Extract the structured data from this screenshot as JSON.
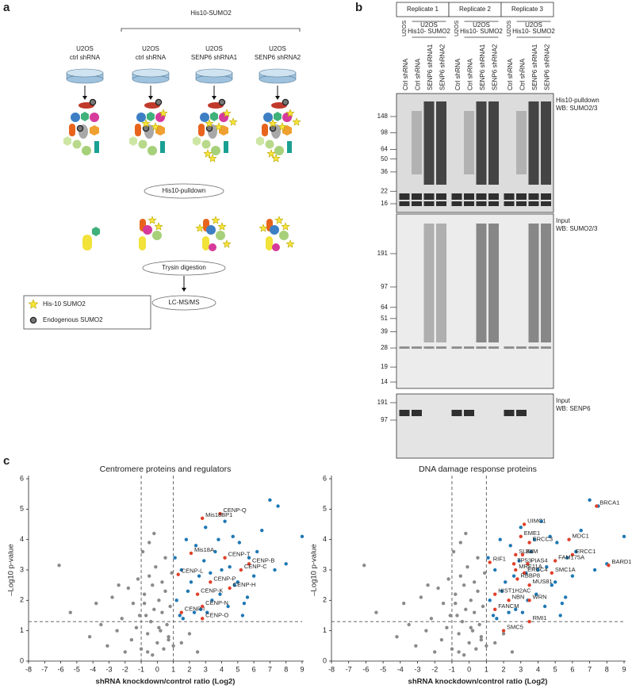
{
  "panel_labels": [
    "a",
    "b",
    "c"
  ],
  "panel_a": {
    "group_label": "His10-SUMO2",
    "columns": [
      [
        "U2OS",
        "ctrl shRNA"
      ],
      [
        "U2OS",
        "ctrl shRNA"
      ],
      [
        "U2OS",
        "SENP6 shRNA1"
      ],
      [
        "U2OS",
        "SENP6 shRNA2"
      ]
    ],
    "steps": [
      "His10-pulldown",
      "Trysin digestion",
      "LC-MS/MS"
    ],
    "legend": [
      "His-10 SUMO2",
      "Endogenous SUMO2"
    ]
  },
  "panel_b": {
    "replicates": [
      "Replicate 1",
      "Replicate 2",
      "Replicate 3"
    ],
    "control_group": "U2OS",
    "his_group": [
      "U2OS",
      "His10- SUMO2"
    ],
    "lanes": [
      [
        "Ctrl shRNA",
        "Ctrl shRNA",
        "SENP6 shRNA1",
        "SENP6 shRNA2"
      ],
      [
        "Ctrl shRNA",
        "Ctrl shRNA",
        "SENP6 shRNA1",
        "SENP6 shRNA2"
      ],
      [
        "Ctrl shRNA",
        "Ctrl shRNA",
        "SENP6 shRNA1",
        "SENP6 shRNA2"
      ]
    ],
    "blots": [
      {
        "caption": [
          "His10-pulldown",
          "WB: SUMO2/3"
        ],
        "markers": [
          148,
          98,
          64,
          50,
          36,
          22,
          16
        ]
      },
      {
        "caption": [
          "Input",
          "WB: SUMO2/3"
        ],
        "markers": [
          191,
          97,
          64,
          51,
          39,
          28,
          19,
          14
        ]
      },
      {
        "caption": [
          "Input",
          "WB: SENP6"
        ],
        "markers": [
          191,
          97
        ]
      }
    ]
  },
  "chart_data": [
    {
      "type": "scatter",
      "title": "Centromere proteins and regulators",
      "x_label": "shRNA knockdown/control ratio (Log2)",
      "y_label": "–Log10 p-value",
      "xlim": [
        -8,
        9
      ],
      "ylim": [
        0,
        6
      ],
      "xticks": [
        -8,
        -7,
        -6,
        -5,
        -4,
        -3,
        -2,
        -1,
        0,
        1,
        2,
        3,
        4,
        5,
        6,
        7,
        8,
        9
      ],
      "yticks": [
        0,
        1,
        2,
        3,
        4,
        5,
        6
      ],
      "thresholds": {
        "x": [
          -1,
          1
        ],
        "y": 1.3
      },
      "series": [
        {
          "color": "#8a8a8a",
          "x": [
            -6.1,
            -5.4,
            -4.2,
            -3.5,
            -3.1,
            -2.8,
            -2.5,
            -2.2,
            -2.0,
            -1.8,
            -1.6,
            -1.5,
            -1.3,
            -1.2,
            -1.0,
            -0.9,
            -0.8,
            -0.7,
            -0.6,
            -0.5,
            -0.4,
            -0.3,
            -0.2,
            -0.1,
            0,
            0.1,
            0.2,
            0.3,
            0.4,
            0.5,
            0.6,
            0.7,
            0.8,
            0.9,
            1.0,
            -0.5,
            -0.2,
            0.3,
            -1.1,
            -0.6,
            0.5,
            0.1,
            -0.3,
            -0.8,
            0.7,
            1.5,
            2.0,
            2.5,
            -2.4,
            -3.8
          ],
          "values": [
            3.15,
            1.6,
            0.8,
            1.2,
            0.5,
            2.1,
            1.0,
            1.4,
            0.3,
            2.4,
            0.7,
            1.9,
            1.1,
            2.7,
            0.4,
            3.6,
            2.2,
            1.5,
            0.9,
            2.8,
            1.3,
            0.2,
            1.7,
            3.1,
            0.6,
            2.0,
            1.0,
            1.6,
            0.4,
            2.3,
            1.2,
            0.8,
            1.8,
            2.9,
            0.5,
            3.9,
            4.2,
            2.6,
            1.5,
            0.3,
            3.4,
            1.1,
            2.5,
            1.9,
            0.7,
            0.6,
            0.9,
            0.3,
            2.5,
            1.9
          ]
        },
        {
          "color": "#1f78b4",
          "x": [
            1.2,
            1.5,
            1.8,
            2.1,
            2.4,
            2.7,
            3.0,
            3.3,
            3.6,
            3.9,
            4.2,
            4.5,
            4.8,
            5.1,
            5.4,
            5.7,
            6.0,
            6.5,
            7.0,
            7.5,
            8.0,
            9.0,
            1.4,
            1.9,
            2.3,
            2.9,
            3.4,
            3.8,
            4.4,
            5.0,
            5.6,
            6.2,
            1.1,
            1.6,
            2.6,
            3.1,
            4.0,
            4.7,
            5.3,
            7.3
          ],
          "values": [
            2.0,
            3.0,
            4.0,
            2.6,
            3.8,
            1.7,
            4.4,
            2.9,
            3.6,
            2.2,
            4.6,
            3.1,
            2.5,
            3.9,
            1.9,
            3.4,
            2.8,
            4.3,
            5.3,
            5.1,
            3.2,
            4.1,
            1.5,
            2.3,
            1.6,
            3.3,
            2.0,
            4.0,
            1.8,
            2.6,
            2.1,
            3.6,
            3.4,
            1.4,
            2.8,
            1.6,
            3.0,
            4.1,
            1.5,
            3.0
          ]
        },
        {
          "color": "#e0402a",
          "labels": [
            "CENP-Q",
            "Mis18BP1",
            "Mis18A",
            "CENP-T",
            "CENP-B",
            "CENP-C",
            "CENP-L",
            "CENP-P",
            "CENP-H",
            "CENP-K",
            "CENP-N",
            "CENP-O",
            "CENP-I"
          ],
          "x": [
            3.9,
            2.8,
            2.1,
            4.2,
            5.7,
            5.2,
            1.3,
            3.3,
            4.5,
            2.5,
            2.8,
            2.8,
            1.5
          ],
          "values": [
            4.85,
            4.7,
            3.55,
            3.4,
            3.2,
            3.0,
            2.85,
            2.6,
            2.4,
            2.2,
            1.8,
            1.4,
            1.6
          ]
        }
      ]
    },
    {
      "type": "scatter",
      "title": "DNA damage response proteins",
      "x_label": "shRNA knockdown/control ratio (Log2)",
      "y_label": "–Log10 p-value",
      "xlim": [
        -8,
        9
      ],
      "ylim": [
        0,
        6
      ],
      "xticks": [
        -8,
        -7,
        -6,
        -5,
        -4,
        -3,
        -2,
        -1,
        0,
        1,
        2,
        3,
        4,
        5,
        6,
        7,
        8,
        9
      ],
      "yticks": [
        0,
        1,
        2,
        3,
        4,
        5,
        6
      ],
      "thresholds": {
        "x": [
          -1,
          1
        ],
        "y": 1.3
      },
      "series": [
        {
          "color": "#8a8a8a",
          "x": [
            -6.1,
            -5.4,
            -4.2,
            -3.5,
            -3.1,
            -2.8,
            -2.5,
            -2.2,
            -2.0,
            -1.8,
            -1.6,
            -1.5,
            -1.3,
            -1.2,
            -1.0,
            -0.9,
            -0.8,
            -0.7,
            -0.6,
            -0.5,
            -0.4,
            -0.3,
            -0.2,
            -0.1,
            0,
            0.1,
            0.2,
            0.3,
            0.4,
            0.5,
            0.6,
            0.7,
            0.8,
            0.9,
            1.0,
            -0.5,
            -0.2,
            0.3,
            -1.1,
            -0.6,
            0.5,
            0.1,
            -0.3,
            -0.8,
            0.7,
            1.5,
            2.0,
            2.5,
            -2.4,
            -3.8
          ],
          "values": [
            3.15,
            1.6,
            0.8,
            1.2,
            0.5,
            2.1,
            1.0,
            1.4,
            0.3,
            2.4,
            0.7,
            1.9,
            1.1,
            2.7,
            0.4,
            3.6,
            2.2,
            1.5,
            0.9,
            2.8,
            1.3,
            0.2,
            1.7,
            3.1,
            0.6,
            2.0,
            1.0,
            1.6,
            0.4,
            2.3,
            1.2,
            0.8,
            1.8,
            2.9,
            0.5,
            3.9,
            4.2,
            2.6,
            1.5,
            0.3,
            3.4,
            1.1,
            2.5,
            1.9,
            0.7,
            0.6,
            0.9,
            0.3,
            2.5,
            1.9
          ]
        },
        {
          "color": "#1f78b4",
          "x": [
            1.2,
            1.5,
            1.8,
            2.1,
            2.4,
            2.7,
            3.0,
            3.3,
            3.6,
            3.9,
            4.2,
            4.5,
            4.8,
            5.1,
            5.4,
            5.7,
            6.0,
            6.5,
            7.0,
            7.5,
            8.0,
            9.0,
            1.4,
            1.9,
            2.3,
            2.9,
            3.4,
            3.8,
            4.4,
            5.0,
            5.6,
            6.2,
            1.1,
            1.6,
            2.6,
            3.1,
            4.0,
            4.7,
            5.3,
            7.3
          ],
          "values": [
            2.0,
            3.0,
            4.0,
            2.6,
            3.8,
            1.7,
            4.4,
            2.9,
            3.6,
            2.2,
            4.6,
            3.1,
            2.5,
            3.9,
            1.9,
            3.4,
            2.8,
            4.3,
            5.3,
            5.1,
            3.2,
            4.1,
            1.5,
            2.3,
            1.6,
            3.3,
            2.0,
            4.0,
            1.8,
            2.6,
            2.1,
            3.6,
            3.4,
            1.4,
            2.8,
            1.6,
            3.0,
            4.1,
            1.5,
            3.0
          ]
        },
        {
          "color": "#e0402a",
          "labels": [
            "BRCA1",
            "BARD1",
            "MDC1",
            "ERCC1",
            "FAM175A",
            "SMC1A",
            "UIMC1",
            "EME1",
            "ERCC3",
            "BLM",
            "SLX4",
            "TP53",
            "PIAS4",
            "MRE11A",
            "ERCC4",
            "RBBP8",
            "MUS81",
            "HIST1H2AC",
            "NBN",
            "WRN",
            "FANCM",
            "RMI1",
            "SMC5",
            "RIF1"
          ],
          "x": [
            7.4,
            8.1,
            5.8,
            6.0,
            5.0,
            4.8,
            3.2,
            3.0,
            3.5,
            3.1,
            2.7,
            2.6,
            3.4,
            2.7,
            3.2,
            2.8,
            3.5,
            1.5,
            2.3,
            3.5,
            1.5,
            3.5,
            2.0,
            1.2
          ],
          "values": [
            5.1,
            3.15,
            4.0,
            3.5,
            3.3,
            2.9,
            4.5,
            4.1,
            3.9,
            3.5,
            3.5,
            3.2,
            3.2,
            3.0,
            2.9,
            2.7,
            2.5,
            2.2,
            2.0,
            2.0,
            1.7,
            1.3,
            1.0,
            3.25
          ]
        }
      ]
    }
  ]
}
